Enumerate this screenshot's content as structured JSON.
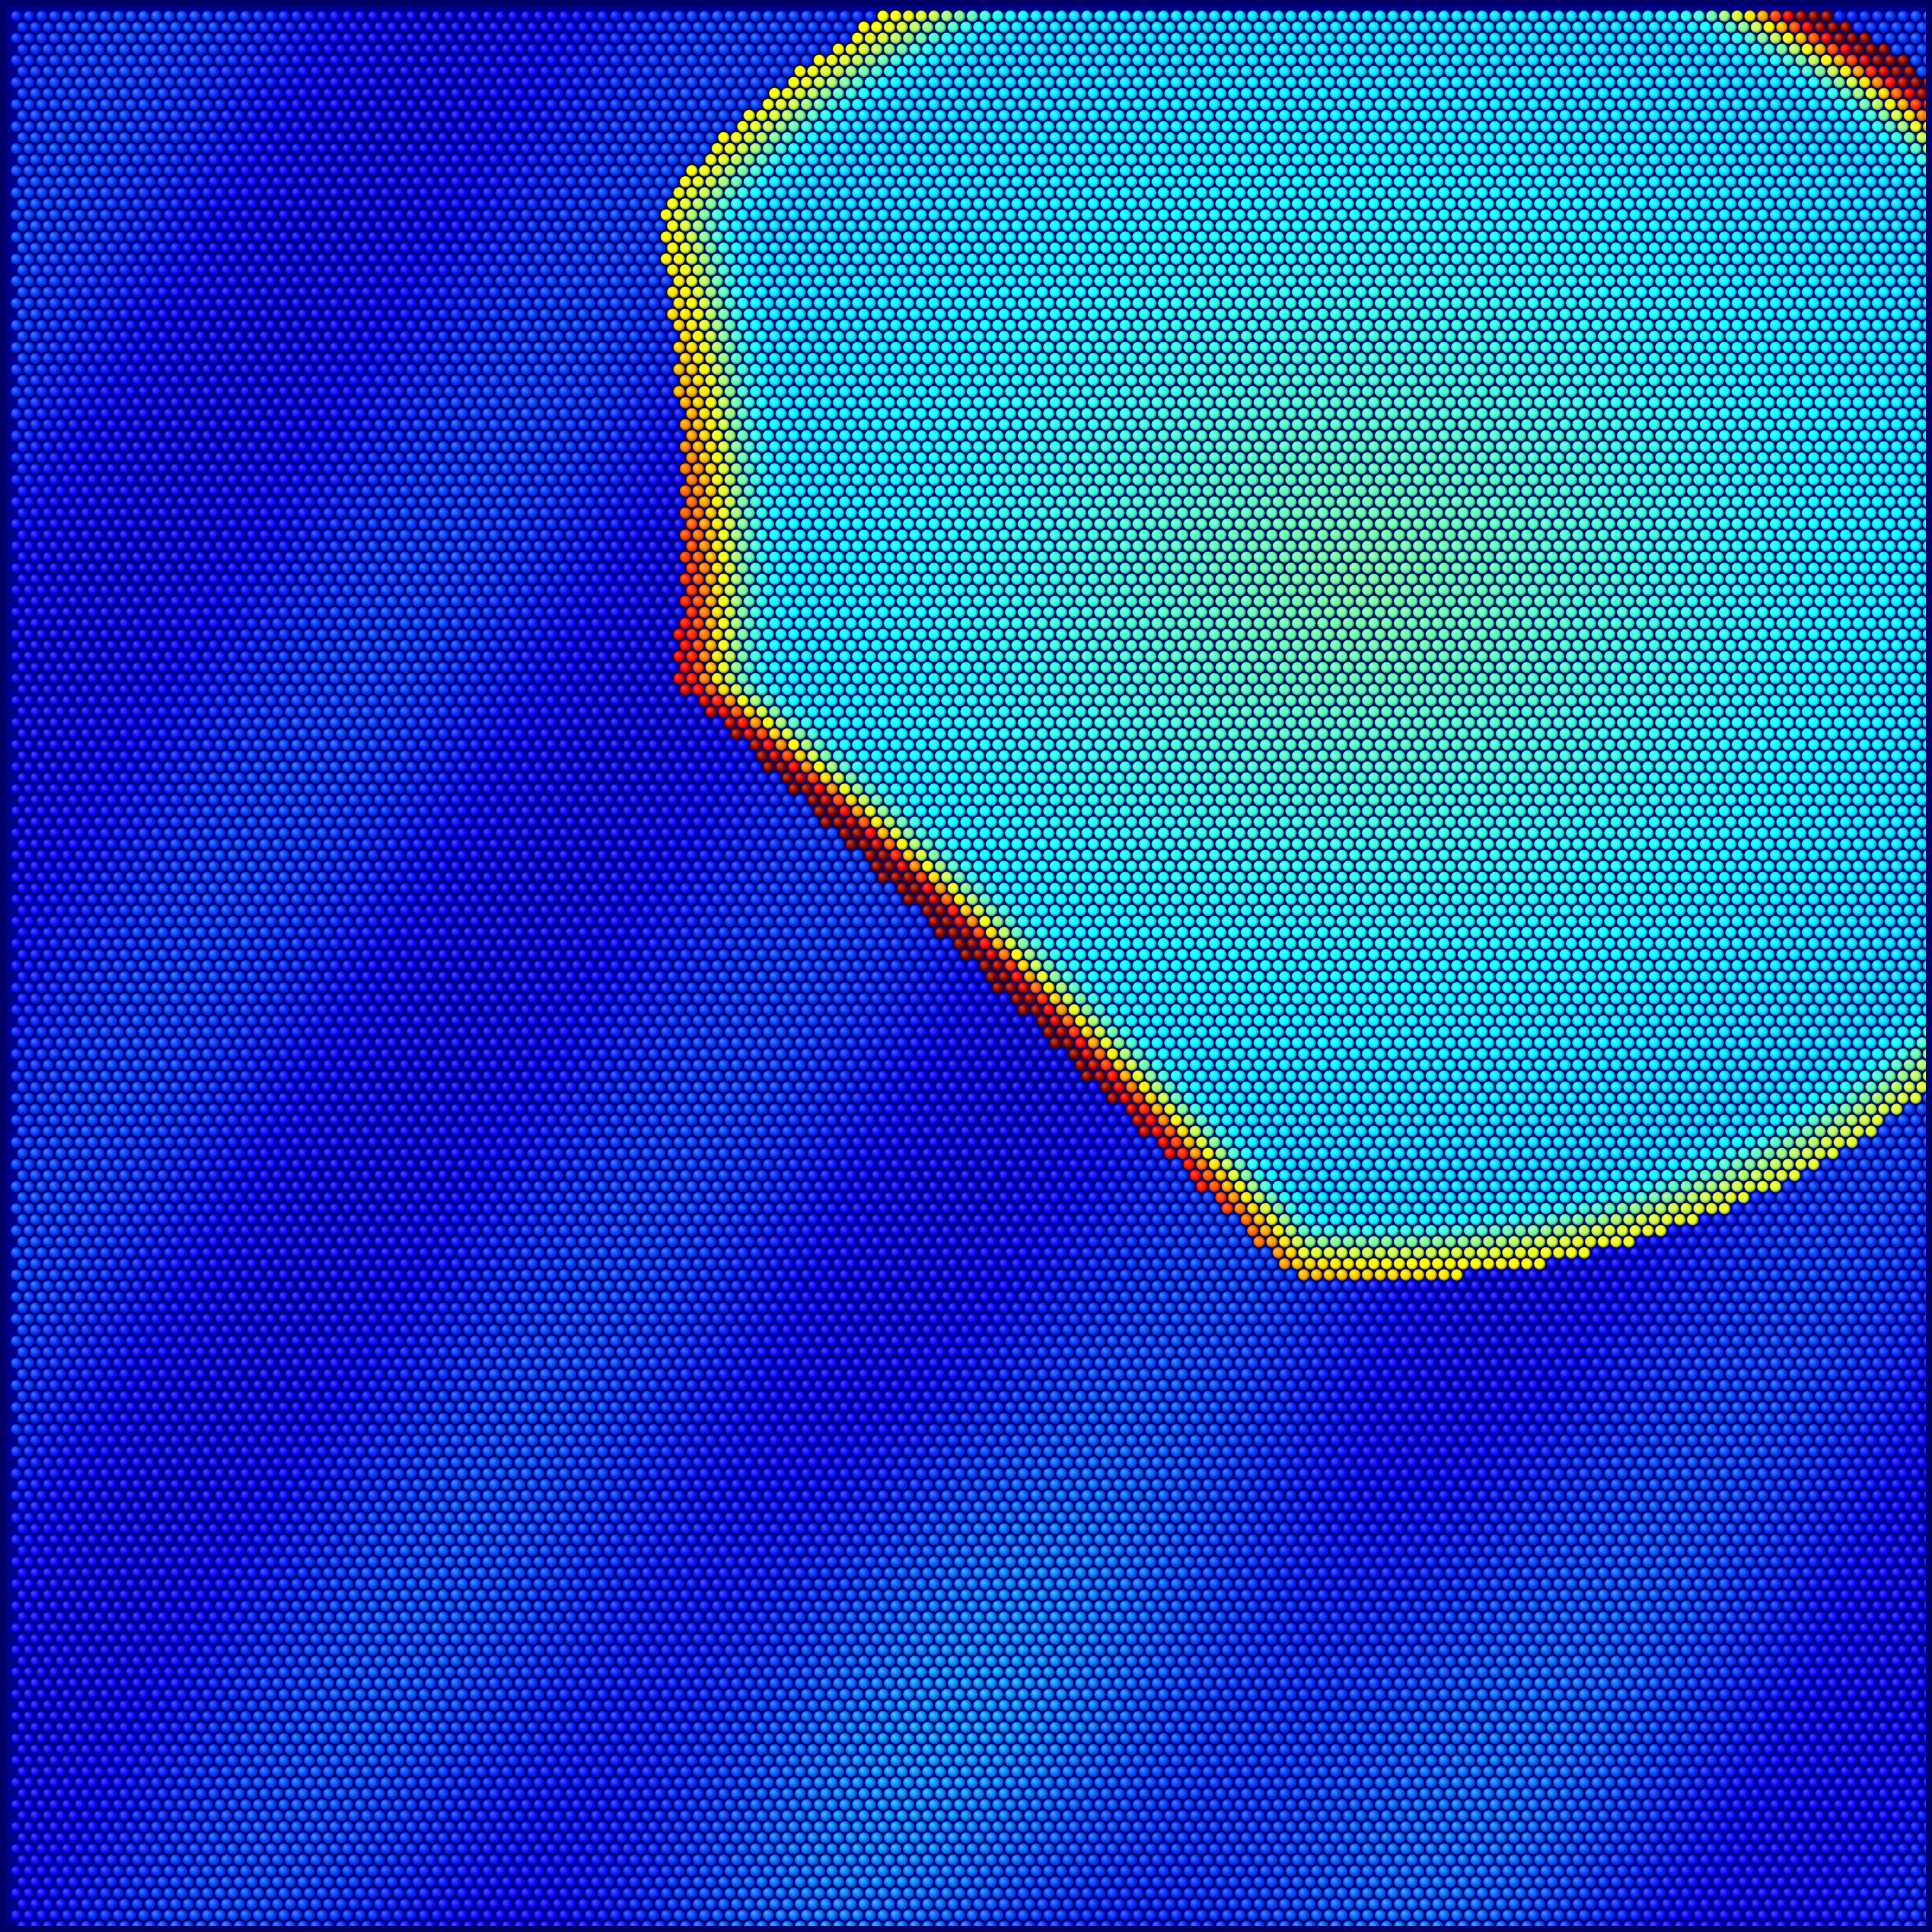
{
  "scene": {
    "kind": "particle-field",
    "description_of_colormap": "jet",
    "colors": {
      "background": "#00008a",
      "frame": "#000066",
      "particle_outline": "#000040",
      "low": "#0000d8",
      "mid_low": "#0050ff",
      "mid": "#00d8ff",
      "mid_high": "#c8ff30",
      "high": "#ffd000",
      "peak": "#ff2000"
    }
  }
}
